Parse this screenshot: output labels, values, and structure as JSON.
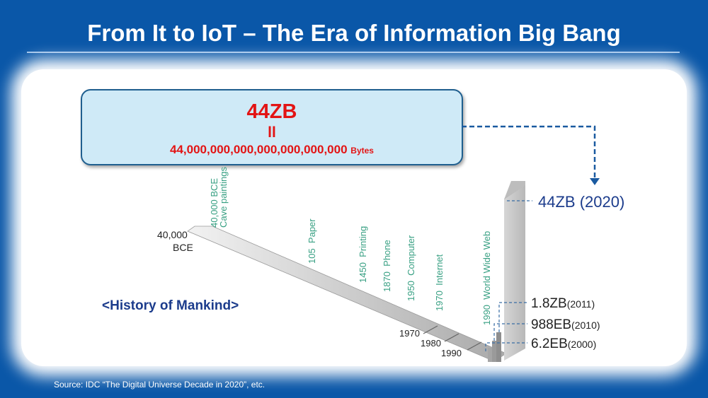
{
  "title": "From It to IoT – The Era of Information Big Bang",
  "headline": {
    "amount": "44ZB",
    "equals": "ll",
    "bytes_value": "44,000,000,000,000,000,000,000",
    "bytes_unit": "Bytes"
  },
  "start_label": [
    "40,000",
    "BCE"
  ],
  "milestones": [
    {
      "label": "40,000 BCE\nCave paintings"
    },
    {
      "label": "105  Paper"
    },
    {
      "label": "1450  Printing"
    },
    {
      "label": "1870  Phone"
    },
    {
      "label": "1950  Computer"
    },
    {
      "label": "1970  Internet"
    },
    {
      "label": "1990  World Wide Web"
    }
  ],
  "decades": [
    "1970",
    "1980",
    "1990"
  ],
  "history_label": "<History of Mankind>",
  "data_points": [
    {
      "value": "44ZB (2020)"
    },
    {
      "value": "1.8ZB",
      "year": "(2011)"
    },
    {
      "value": "988EB",
      "year": "(2010)"
    },
    {
      "value": "6.2EB",
      "year": "(2000)"
    }
  ],
  "source": "Source:  IDC “The Digital Universe Decade in 2020”, etc.",
  "colors": {
    "background": "#0a57a8",
    "accent_red": "#e31414",
    "milestone_green": "#38a083",
    "navy": "#1c3c8c"
  }
}
